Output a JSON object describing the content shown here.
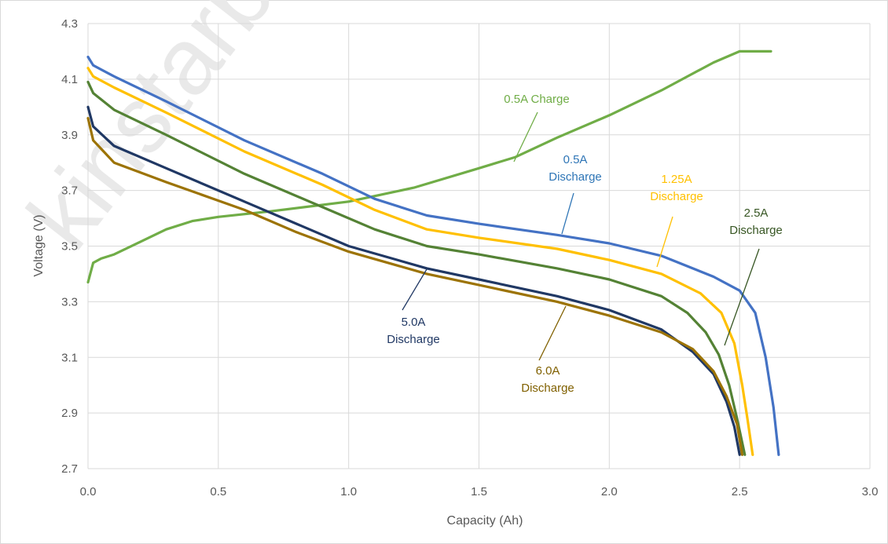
{
  "watermark": "kinstarb",
  "chart_data": {
    "type": "line",
    "xlabel": "Capacity (Ah)",
    "ylabel": "Voltage (V)",
    "xlim": [
      0,
      3.0
    ],
    "ylim": [
      2.7,
      4.3
    ],
    "x_ticks": [
      "0.0",
      "0.5",
      "1.0",
      "1.5",
      "2.0",
      "2.5",
      "3.0"
    ],
    "y_ticks": [
      "2.7",
      "2.9",
      "3.1",
      "3.3",
      "3.5",
      "3.7",
      "3.9",
      "4.1",
      "4.3"
    ],
    "grid": true,
    "series": [
      {
        "id": "charge-0_5a",
        "color": "#70ad47",
        "x": [
          0.0,
          0.02,
          0.05,
          0.1,
          0.2,
          0.3,
          0.4,
          0.5,
          0.7,
          1.0,
          1.25,
          1.5,
          1.64,
          1.8,
          2.0,
          2.2,
          2.4,
          2.5,
          2.62
        ],
        "y": [
          3.37,
          3.44,
          3.455,
          3.47,
          3.515,
          3.56,
          3.59,
          3.605,
          3.625,
          3.66,
          3.71,
          3.78,
          3.82,
          3.89,
          3.97,
          4.06,
          4.16,
          4.2,
          4.2
        ]
      },
      {
        "id": "discharge-0_5a",
        "color": "#4472c4",
        "x": [
          0.0,
          0.02,
          0.1,
          0.3,
          0.6,
          0.9,
          1.1,
          1.3,
          1.5,
          1.8,
          2.0,
          2.2,
          2.4,
          2.5,
          2.56,
          2.6,
          2.63,
          2.65
        ],
        "y": [
          4.18,
          4.15,
          4.11,
          4.02,
          3.88,
          3.76,
          3.67,
          3.61,
          3.58,
          3.54,
          3.51,
          3.465,
          3.39,
          3.34,
          3.26,
          3.1,
          2.92,
          2.75
        ]
      },
      {
        "id": "discharge-1_25a",
        "color": "#ffc000",
        "x": [
          0.0,
          0.02,
          0.1,
          0.3,
          0.6,
          0.9,
          1.1,
          1.3,
          1.5,
          1.8,
          2.0,
          2.2,
          2.35,
          2.43,
          2.48,
          2.51,
          2.53,
          2.55
        ],
        "y": [
          4.14,
          4.11,
          4.07,
          3.98,
          3.84,
          3.72,
          3.63,
          3.56,
          3.53,
          3.49,
          3.45,
          3.4,
          3.33,
          3.26,
          3.15,
          3.0,
          2.88,
          2.75
        ]
      },
      {
        "id": "discharge-2_5a",
        "color": "#548235",
        "x": [
          0.0,
          0.02,
          0.1,
          0.3,
          0.6,
          0.9,
          1.1,
          1.3,
          1.5,
          1.8,
          2.0,
          2.2,
          2.3,
          2.37,
          2.42,
          2.46,
          2.49,
          2.52
        ],
        "y": [
          4.09,
          4.05,
          3.99,
          3.9,
          3.76,
          3.64,
          3.56,
          3.5,
          3.47,
          3.42,
          3.38,
          3.32,
          3.26,
          3.19,
          3.11,
          3.0,
          2.88,
          2.75
        ]
      },
      {
        "id": "discharge-5_0a",
        "color": "#203864",
        "x": [
          0.0,
          0.02,
          0.1,
          0.3,
          0.6,
          0.8,
          1.0,
          1.3,
          1.5,
          1.8,
          2.0,
          2.2,
          2.32,
          2.4,
          2.45,
          2.48,
          2.5
        ],
        "y": [
          4.0,
          3.93,
          3.86,
          3.78,
          3.66,
          3.58,
          3.5,
          3.42,
          3.38,
          3.32,
          3.27,
          3.2,
          3.12,
          3.04,
          2.94,
          2.85,
          2.75
        ]
      },
      {
        "id": "discharge-6_0a",
        "color": "#9c7304",
        "x": [
          0.0,
          0.02,
          0.1,
          0.3,
          0.6,
          0.8,
          1.0,
          1.3,
          1.5,
          1.8,
          2.0,
          2.2,
          2.32,
          2.4,
          2.45,
          2.49,
          2.51
        ],
        "y": [
          3.96,
          3.88,
          3.8,
          3.73,
          3.63,
          3.55,
          3.48,
          3.4,
          3.36,
          3.3,
          3.25,
          3.19,
          3.13,
          3.05,
          2.96,
          2.86,
          2.75
        ]
      }
    ],
    "annotations": [
      {
        "id": "charge-0_5a",
        "lines": [
          "0.5A Charge"
        ],
        "color": "#70ad47"
      },
      {
        "id": "discharge-0_5a",
        "lines": [
          "0.5A",
          "Discharge"
        ],
        "color": "#2e75b6"
      },
      {
        "id": "discharge-1_25a",
        "lines": [
          "1.25A",
          "Discharge"
        ],
        "color": "#ffc000"
      },
      {
        "id": "discharge-2_5a",
        "lines": [
          "2.5A",
          "Discharge"
        ],
        "color": "#375623"
      },
      {
        "id": "discharge-5_0a",
        "lines": [
          "5.0A",
          "Discharge"
        ],
        "color": "#203864"
      },
      {
        "id": "discharge-6_0a",
        "lines": [
          "6.0A",
          "Discharge"
        ],
        "color": "#806000"
      }
    ]
  }
}
